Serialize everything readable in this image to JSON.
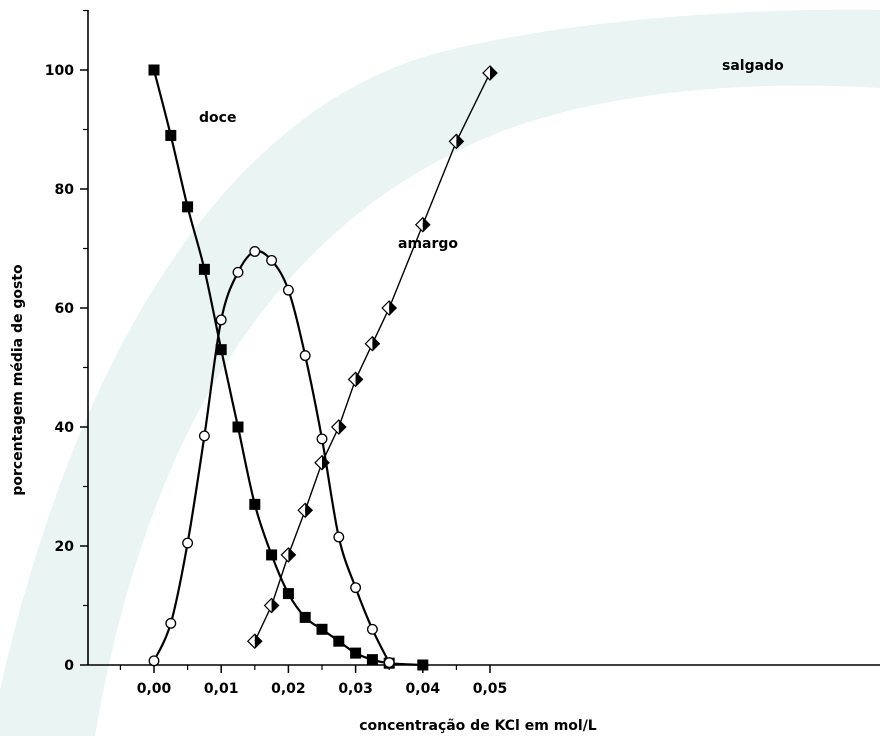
{
  "chart_data": {
    "type": "line",
    "title": "",
    "xlabel": "concentração de KCl em mol/L",
    "ylabel": "porcentagem média de gosto",
    "xlim": [
      -0.005,
      0.054
    ],
    "ylim": [
      0,
      110
    ],
    "x_ticks": [
      0.0,
      0.01,
      0.02,
      0.03,
      0.04,
      0.05
    ],
    "x_tick_labels": [
      "0,00",
      "0,01",
      "0,02",
      "0,03",
      "0,04",
      "0,05"
    ],
    "y_ticks": [
      0,
      20,
      40,
      60,
      80,
      100
    ],
    "y_tick_labels": [
      "0",
      "20",
      "40",
      "60",
      "80",
      "100"
    ],
    "grid": false,
    "legend": "none",
    "series": [
      {
        "name": "doce",
        "marker": "filled-square",
        "color": "#000000",
        "x": [
          0.0,
          0.0025,
          0.005,
          0.0075,
          0.01,
          0.0125,
          0.015,
          0.0175,
          0.02,
          0.0225,
          0.025,
          0.0275,
          0.03,
          0.0325,
          0.035,
          0.04
        ],
        "y": [
          100,
          89,
          77,
          66.5,
          53,
          40,
          27,
          18.5,
          12,
          8,
          6,
          4,
          2,
          0.9,
          0.3,
          0
        ]
      },
      {
        "name": "amargo",
        "marker": "open-circle",
        "color": "#000000",
        "x": [
          0.0,
          0.0025,
          0.005,
          0.0075,
          0.01,
          0.0125,
          0.015,
          0.0175,
          0.02,
          0.0225,
          0.025,
          0.0275,
          0.03,
          0.0325,
          0.035
        ],
        "y": [
          0.7,
          7,
          20.5,
          38.5,
          58,
          66,
          69.5,
          68,
          63,
          52,
          38,
          21.5,
          13,
          6,
          0.4
        ]
      },
      {
        "name": "salgado",
        "marker": "half-filled-diamond",
        "color": "#000000",
        "x": [
          0.015,
          0.0175,
          0.02,
          0.0225,
          0.025,
          0.0275,
          0.03,
          0.0325,
          0.035,
          0.04,
          0.045,
          0.05
        ],
        "y": [
          4,
          10,
          18.5,
          26,
          34,
          40,
          48,
          54,
          60,
          74,
          88,
          99.5
        ]
      }
    ]
  },
  "colors": {
    "background": "#ffffff",
    "watermark": "#e8f4f3",
    "ink": "#000000"
  }
}
